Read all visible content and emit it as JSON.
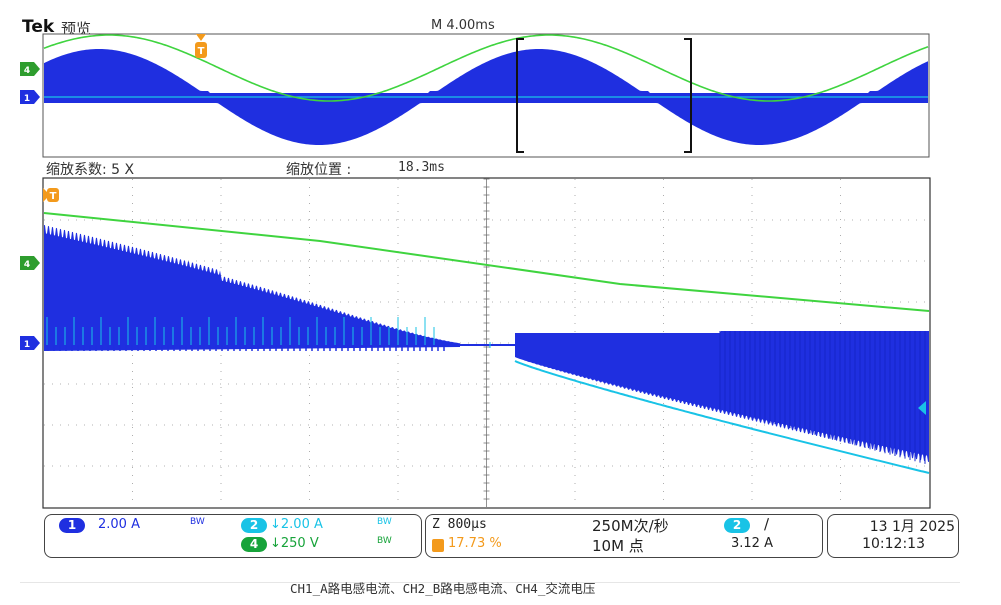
{
  "brand": "Tek",
  "mode": "预览",
  "timebase": "M 4.00ms",
  "zoom": {
    "factor_label": "缩放系数: 5 X",
    "position_label": "缩放位置 :",
    "position_value": "18.3ms"
  },
  "markers": {
    "trigger": "T",
    "ch1": "1",
    "ch4": "4"
  },
  "channels": {
    "ch1": {
      "badge": "1",
      "value": "2.00 A",
      "coupling": "BW",
      "color": "#1f2fe0"
    },
    "ch2": {
      "badge": "2",
      "value": "↓2.00 A",
      "coupling": "BW",
      "color": "#19c3e6"
    },
    "ch4": {
      "badge": "4",
      "value": "↓250 V",
      "coupling": "BW",
      "color": "#17a33a"
    }
  },
  "horizontal": {
    "zoom_scale": "Z 800µs",
    "trigger_pos": "17.73 %",
    "sample_rate": "250M次/秒",
    "record_length": "10M 点"
  },
  "trigger": {
    "channel": "2",
    "slope": "∕",
    "level": "3.12 A"
  },
  "datetime": {
    "date": "13 1月 2025",
    "time": "10:12:13"
  },
  "caption": "CH1_A路电感电流、CH2_B路电感电流、CH4_交流电压",
  "colors": {
    "ch1": "#1f2fe0",
    "ch2": "#19c3e6",
    "ch4": "#3fd43f",
    "trigger": "#f39a1c"
  }
}
